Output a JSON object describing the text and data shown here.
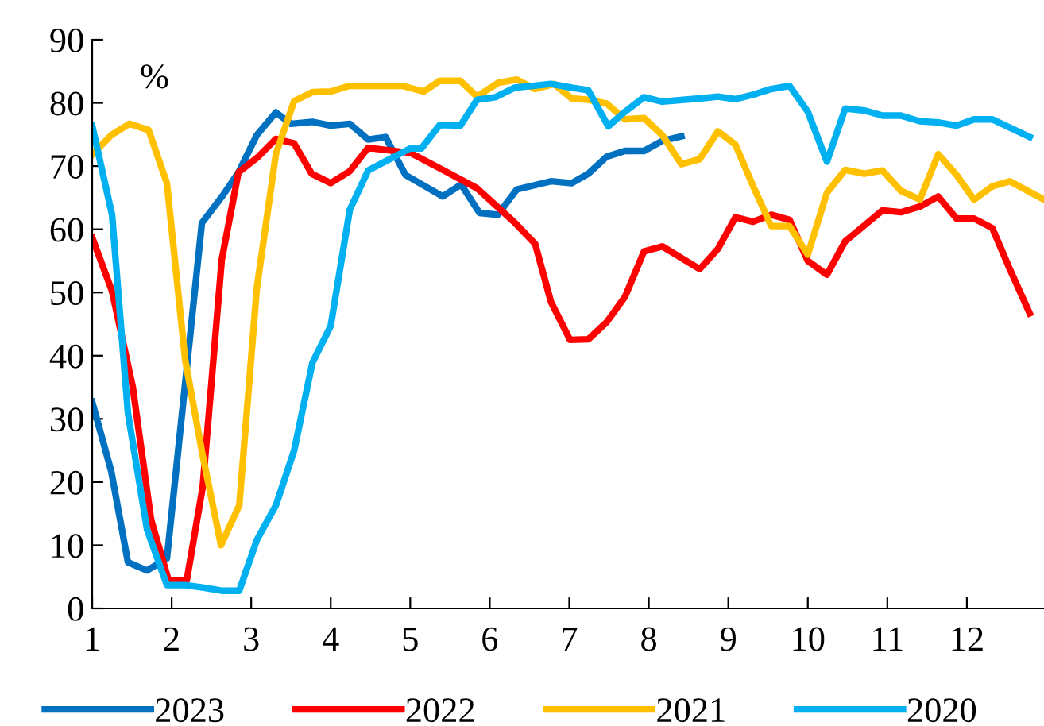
{
  "chart_data": {
    "type": "line",
    "ylabel": "%",
    "xlim": [
      1,
      12.97
    ],
    "xticks": [
      1,
      2,
      3,
      4,
      5,
      6,
      7,
      8,
      9,
      10,
      11,
      12
    ],
    "ylim": [
      0,
      90
    ],
    "yticks": [
      0,
      10,
      20,
      30,
      40,
      50,
      60,
      70,
      80,
      90
    ],
    "grid": false,
    "legend": "bottom",
    "marker": "none",
    "line_style": "solid",
    "series": [
      {
        "name": "2023",
        "color": "#0070c0",
        "x": [
          1,
          1.24,
          1.45,
          1.69,
          1.94,
          2.38,
          2.64,
          2.84,
          3.07,
          3.31,
          3.5,
          3.77,
          4.0,
          4.24,
          4.47,
          4.69,
          4.94,
          5.41,
          5.64,
          5.87,
          6.1,
          6.34,
          6.77,
          7.03,
          7.24,
          7.47,
          7.7,
          7.94,
          8.17,
          8.41
        ],
        "values": [
          32.7,
          21.7,
          7.3,
          6,
          7.9,
          61,
          65.3,
          69,
          74.9,
          78.5,
          76.7,
          77,
          76.4,
          76.7,
          74.2,
          74.6,
          68.6,
          65.2,
          67.1,
          62.6,
          62.3,
          66.3,
          67.6,
          67.3,
          68.8,
          71.5,
          72.4,
          72.4,
          74,
          74.7
        ]
      },
      {
        "name": "2022",
        "color": "#ff0000",
        "x": [
          1,
          1.25,
          1.51,
          1.74,
          1.96,
          2.19,
          2.39,
          2.63,
          2.84,
          3.09,
          3.31,
          3.54,
          3.76,
          4.0,
          4.24,
          4.47,
          5.0,
          5.41,
          5.84,
          6.31,
          6.57,
          6.77,
          7.01,
          7.24,
          7.47,
          7.7,
          7.94,
          8.17,
          8.64,
          8.87,
          9.09,
          9.31,
          9.54,
          9.77,
          10.0,
          10.24,
          10.47,
          10.71,
          10.94,
          11.17,
          11.41,
          11.64,
          11.87,
          12.09,
          12.32,
          12.54,
          12.79
        ],
        "values": [
          58.7,
          50.2,
          35.1,
          14.1,
          4.5,
          4.5,
          19.2,
          55.2,
          69,
          71.5,
          74.3,
          73.6,
          68.8,
          67.3,
          69.2,
          72.9,
          72.1,
          69.4,
          66.5,
          61.1,
          57.7,
          48.5,
          42.5,
          42.6,
          45.3,
          49.3,
          56.5,
          57.3,
          53.7,
          56.9,
          61.9,
          61.2,
          62.3,
          61.5,
          55,
          52.8,
          58.1,
          60.6,
          63,
          62.7,
          63.6,
          65.2,
          61.7,
          61.7,
          60.2,
          53.7,
          46.7
        ]
      },
      {
        "name": "2021",
        "color": "#ffc000",
        "x": [
          1,
          1.24,
          1.47,
          1.71,
          1.94,
          2.17,
          2.39,
          2.62,
          2.85,
          3.07,
          3.31,
          3.54,
          3.77,
          4.0,
          4.24,
          4.9,
          5.17,
          5.37,
          5.63,
          5.84,
          6.11,
          6.34,
          6.57,
          6.81,
          7.03,
          7.24,
          7.47,
          7.7,
          7.94,
          8.17,
          8.41,
          8.64,
          8.87,
          9.09,
          9.31,
          9.54,
          9.77,
          10.0,
          10.24,
          10.47,
          10.71,
          10.94,
          11.17,
          11.41,
          11.64,
          11.87,
          12.09,
          12.32,
          12.54,
          12.97
        ],
        "values": [
          71.8,
          74.9,
          76.7,
          75.7,
          67.3,
          39.3,
          24.2,
          10,
          16.3,
          50.6,
          71.9,
          80.3,
          81.7,
          81.8,
          82.7,
          82.7,
          81.8,
          83.5,
          83.5,
          81,
          83.2,
          83.7,
          82.2,
          83,
          80.7,
          80.5,
          79.9,
          77.4,
          77.6,
          74.9,
          70.3,
          71.1,
          75.5,
          73.4,
          66.9,
          60.5,
          60.5,
          56,
          65.8,
          69.4,
          68.8,
          69.3,
          66.1,
          64.7,
          71.9,
          68.6,
          64.7,
          66.8,
          67.6,
          64.7
        ]
      },
      {
        "name": "2020",
        "color": "#00b0f0",
        "x": [
          1,
          1.25,
          1.45,
          1.69,
          1.94,
          2.17,
          2.39,
          2.63,
          2.85,
          3.07,
          3.31,
          3.54,
          3.77,
          4.0,
          4.24,
          4.47,
          4.71,
          5.0,
          5.14,
          5.37,
          5.63,
          5.84,
          6.07,
          6.31,
          6.54,
          6.77,
          7.03,
          7.24,
          7.49,
          7.7,
          7.94,
          8.17,
          8.64,
          8.87,
          9.09,
          9.31,
          9.54,
          9.77,
          10.0,
          10.24,
          10.47,
          10.71,
          10.94,
          11.17,
          11.41,
          11.64,
          11.87,
          12.09,
          12.32,
          12.79
        ],
        "values": [
          76.4,
          62.3,
          30.9,
          12.5,
          3.7,
          3.7,
          3.3,
          2.8,
          2.8,
          10.8,
          16.3,
          25,
          38.9,
          44.7,
          63.1,
          69.3,
          70.9,
          72.8,
          72.8,
          76.5,
          76.4,
          80.5,
          80.9,
          82.4,
          82.7,
          83,
          82.4,
          82,
          76.3,
          78.6,
          80.9,
          80.2,
          80.7,
          81,
          80.6,
          81.3,
          82.2,
          82.7,
          78.6,
          70.7,
          79.1,
          78.8,
          78,
          78,
          77.1,
          76.9,
          76.4,
          77.4,
          77.4,
          74.6
        ]
      }
    ]
  }
}
